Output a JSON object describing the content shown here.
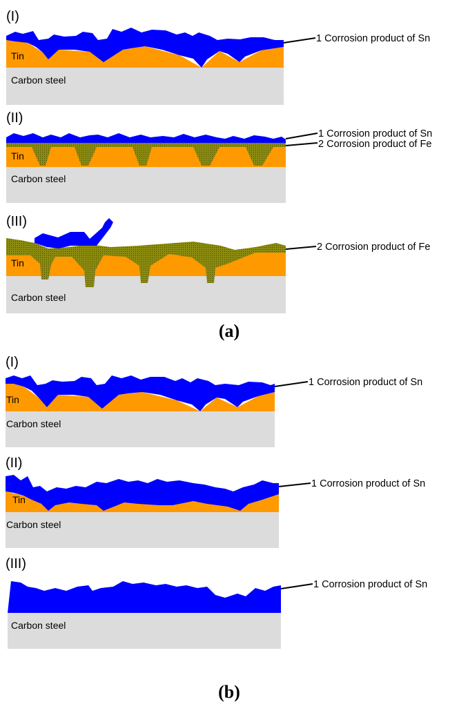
{
  "colors": {
    "tin": "#ff9900",
    "steel": "#dcdcdc",
    "sn_product": "#0000ff",
    "fe_product": "#8c8c10",
    "fe_product_dots": "#4a4a00"
  },
  "part_a": {
    "caption": "(a)",
    "stage_1": {
      "roman": "(I)",
      "tin": "Tin",
      "steel": "Carbon steel",
      "callout_1": "1 Corrosion product of Sn"
    },
    "stage_2": {
      "roman": "(II)",
      "tin": "Tin",
      "steel": "Carbon steel",
      "callout_1": "1 Corrosion product of Sn",
      "callout_2": "2 Corrosion product of Fe"
    },
    "stage_3": {
      "roman": "(III)",
      "tin": "Tin",
      "steel": "Carbon steel",
      "callout_2": "2 Corrosion product of Fe"
    }
  },
  "part_b": {
    "caption": "(b)",
    "stage_1": {
      "roman": "(I)",
      "tin": "Tin",
      "steel": "Carbon steel",
      "callout_1": "1 Corrosion product of Sn"
    },
    "stage_2": {
      "roman": "(II)",
      "tin": "Tin",
      "steel": "Carbon steel",
      "callout_1": "1 Corrosion product of Sn"
    },
    "stage_3": {
      "roman": "(III)",
      "steel": "Carbon steel",
      "callout_1": "1 Corrosion product of Sn"
    }
  }
}
